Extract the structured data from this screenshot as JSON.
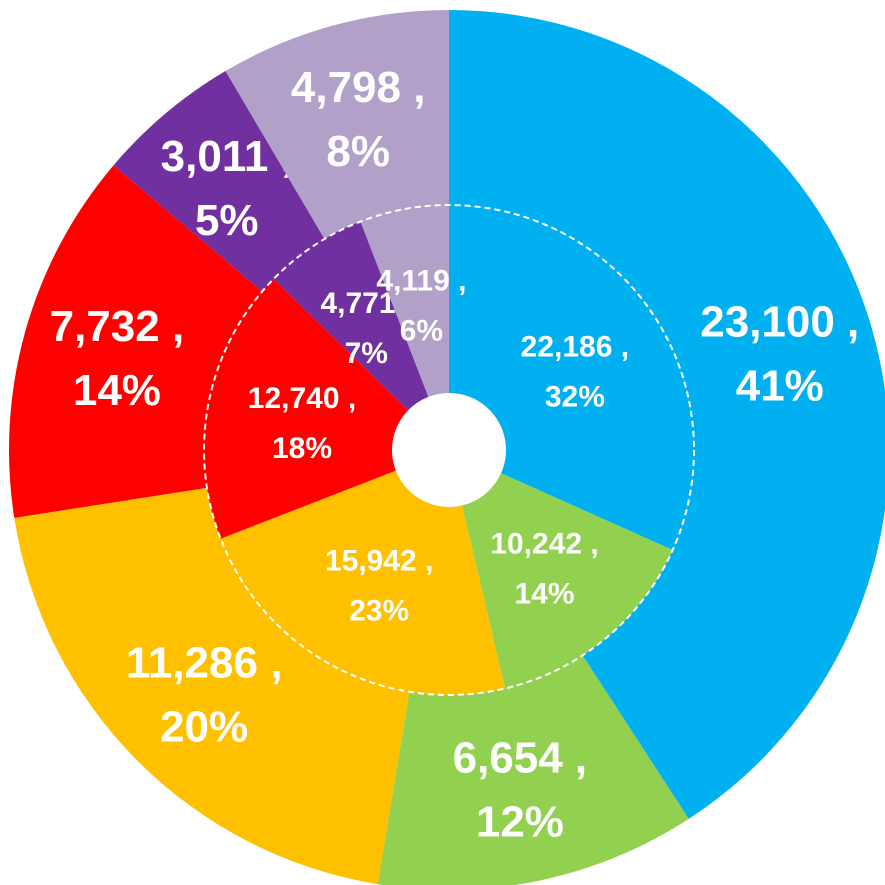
{
  "chart_data": {
    "type": "donut",
    "colors": [
      "#00B0F0",
      "#92D050",
      "#FFC000",
      "#FF0000",
      "#7030A0",
      "#B1A0C7"
    ],
    "series": [
      {
        "values": [
          23100,
          6654,
          11286,
          7732,
          3011,
          4798
        ],
        "value_labels": [
          "23,100 ,",
          "6,654 ,",
          "11,286 ,",
          "7,732 ,",
          "3,011 ,",
          "4,798 ,"
        ],
        "percent_labels": [
          "41%",
          "12%",
          "20%",
          "14%",
          "5%",
          "8%"
        ]
      },
      {
        "values": [
          22186,
          10242,
          15942,
          12740,
          4771,
          4119
        ],
        "value_labels": [
          "22,186 ,",
          "10,242 ,",
          "15,942 ,",
          "12,740 ,",
          "4,771 ,",
          "4,119 ,"
        ],
        "percent_labels": [
          "32%",
          "14%",
          "23%",
          "18%",
          "7%",
          "6%"
        ]
      }
    ]
  }
}
